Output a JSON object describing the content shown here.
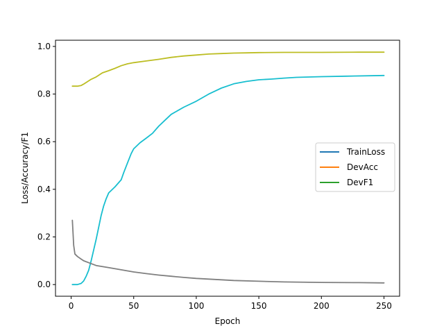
{
  "chart_data": {
    "type": "line",
    "title": "",
    "xlabel": "Epoch",
    "ylabel": "Loss/Accuracy/F1",
    "xlim": [
      -12.5,
      262.5
    ],
    "ylim": [
      -0.049,
      1.026
    ],
    "xticks": [
      0,
      50,
      100,
      150,
      200,
      250
    ],
    "yticks": [
      0.0,
      0.2,
      0.4,
      0.6,
      0.8,
      1.0
    ],
    "xtick_labels": [
      "0",
      "50",
      "100",
      "150",
      "200",
      "250"
    ],
    "ytick_labels": [
      "0.0",
      "0.2",
      "0.4",
      "0.6",
      "0.8",
      "1.0"
    ],
    "grid": false,
    "legend": {
      "placement": "center-right",
      "entries": [
        {
          "name": "TrainLoss",
          "color": "#1f77b4"
        },
        {
          "name": "DevAcc",
          "color": "#ff7f0e"
        },
        {
          "name": "DevF1",
          "color": "#2ca02c"
        }
      ]
    },
    "series": [
      {
        "color": "#bcbd22",
        "x": [
          1,
          5,
          8,
          10,
          13,
          16,
          20,
          25,
          30,
          35,
          40,
          45,
          50,
          60,
          70,
          80,
          90,
          100,
          110,
          120,
          130,
          140,
          150,
          170,
          200,
          230,
          250
        ],
        "y": [
          0.833,
          0.833,
          0.836,
          0.842,
          0.852,
          0.862,
          0.872,
          0.889,
          0.898,
          0.908,
          0.919,
          0.927,
          0.932,
          0.939,
          0.946,
          0.954,
          0.96,
          0.964,
          0.968,
          0.97,
          0.972,
          0.973,
          0.974,
          0.975,
          0.975,
          0.976,
          0.976
        ]
      },
      {
        "color": "#17becf",
        "x": [
          1,
          5,
          8,
          10,
          12,
          14,
          16,
          18,
          20,
          22,
          24,
          26,
          28,
          30,
          35,
          40,
          42,
          45,
          48,
          50,
          55,
          60,
          65,
          70,
          75,
          80,
          90,
          100,
          110,
          120,
          130,
          140,
          150,
          160,
          170,
          180,
          200,
          220,
          250
        ],
        "y": [
          0.0,
          0.0,
          0.005,
          0.015,
          0.035,
          0.06,
          0.1,
          0.145,
          0.19,
          0.24,
          0.29,
          0.33,
          0.36,
          0.385,
          0.41,
          0.44,
          0.47,
          0.51,
          0.55,
          0.57,
          0.595,
          0.615,
          0.635,
          0.665,
          0.69,
          0.715,
          0.745,
          0.77,
          0.8,
          0.825,
          0.843,
          0.853,
          0.86,
          0.863,
          0.867,
          0.87,
          0.873,
          0.875,
          0.878
        ]
      },
      {
        "color": "#7f7f7f",
        "x": [
          1,
          2,
          3,
          5,
          8,
          10,
          15,
          20,
          30,
          40,
          50,
          60,
          70,
          80,
          90,
          100,
          110,
          120,
          130,
          150,
          170,
          200,
          230,
          250
        ],
        "y": [
          0.27,
          0.165,
          0.128,
          0.118,
          0.107,
          0.1,
          0.09,
          0.08,
          0.071,
          0.062,
          0.053,
          0.046,
          0.04,
          0.035,
          0.03,
          0.026,
          0.023,
          0.02,
          0.017,
          0.014,
          0.011,
          0.009,
          0.008,
          0.007
        ]
      }
    ]
  }
}
